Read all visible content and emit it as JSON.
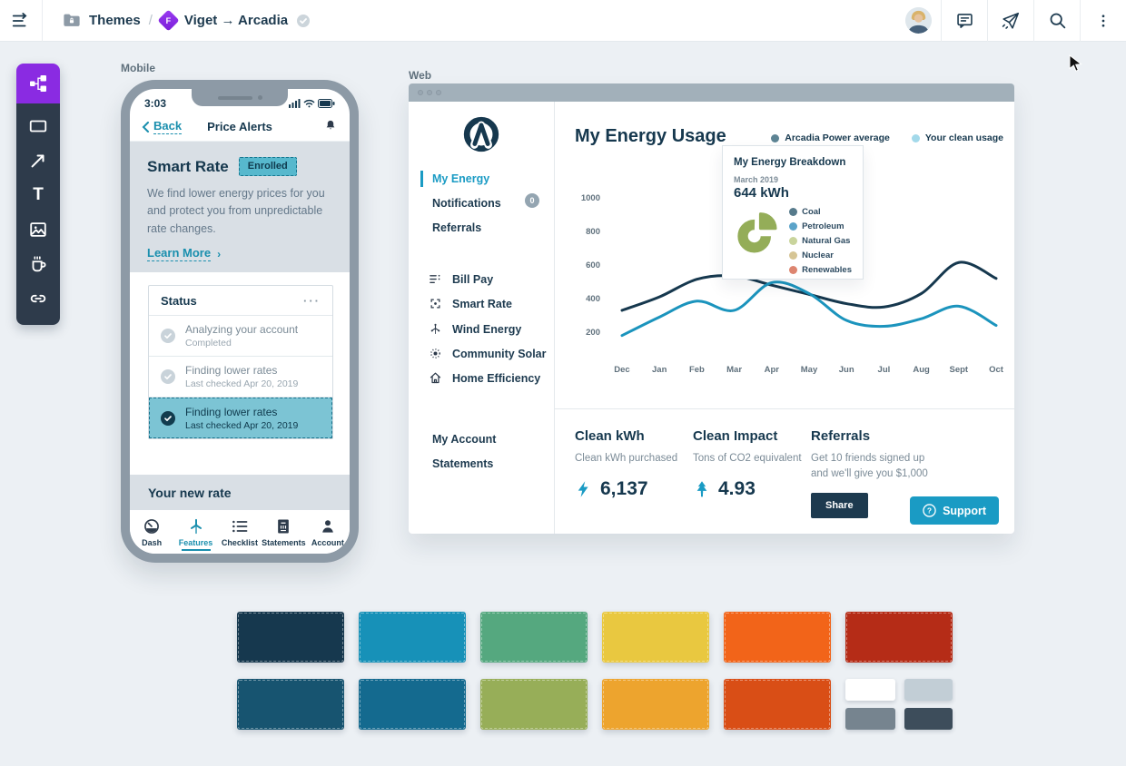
{
  "topbar": {
    "folder_label": "Themes",
    "separator": "/",
    "project_badge_letter": "F",
    "project_name": "Viget → Arcadia"
  },
  "artboards": {
    "mobile_label": "Mobile",
    "web_label": "Web"
  },
  "mobile": {
    "status_time": "3:03",
    "nav": {
      "back_label": "Back",
      "title": "Price Alerts"
    },
    "smart_rate": {
      "title": "Smart Rate",
      "badge_label": "Enrolled",
      "body": "We find lower energy prices for you and protect you from unpredictable rate changes.",
      "link_label": "Learn More",
      "link_chevron": "›"
    },
    "status_card": {
      "title": "Status",
      "menu_glyph": "···",
      "items": [
        {
          "title": "Analyzing your account",
          "subtitle": "Completed",
          "selected": false
        },
        {
          "title": "Finding lower rates",
          "subtitle": "Last checked Apr 20, 2019",
          "selected": false
        },
        {
          "title": "Finding lower rates",
          "subtitle": "Last checked Apr 20, 2019",
          "selected": true
        }
      ]
    },
    "new_rate_label": "Your new rate",
    "tabs": [
      {
        "label": "Dash",
        "active": false
      },
      {
        "label": "Features",
        "active": true
      },
      {
        "label": "Checklist",
        "active": false
      },
      {
        "label": "Statements",
        "active": false
      },
      {
        "label": "Account",
        "active": false
      }
    ]
  },
  "web": {
    "sidebar": {
      "primary": [
        {
          "label": "My Energy",
          "active": true
        },
        {
          "label": "Notifications",
          "badge": "0"
        },
        {
          "label": "Referrals"
        }
      ],
      "secondary": [
        {
          "label": "Bill Pay"
        },
        {
          "label": "Smart Rate"
        },
        {
          "label": "Wind Energy"
        },
        {
          "label": "Community Solar"
        },
        {
          "label": "Home Efficiency"
        }
      ],
      "tertiary": [
        {
          "label": "My Account"
        },
        {
          "label": "Statements"
        }
      ]
    },
    "main": {
      "title": "My Energy Usage",
      "legend": [
        {
          "label": "Arcadia Power average",
          "dot_color": "#5d8494"
        },
        {
          "label": "Your clean usage",
          "dot_color": "#a3d9ea"
        }
      ]
    },
    "tooltip": {
      "title": "My Energy Breakdown",
      "period": "March 2019",
      "value": "644 kWh",
      "legend": [
        {
          "label": "Coal",
          "color": "#567a8b"
        },
        {
          "label": "Petroleum",
          "color": "#5ba3c9"
        },
        {
          "label": "Natural Gas",
          "color": "#c9d49c"
        },
        {
          "label": "Nuclear",
          "color": "#d6c595"
        },
        {
          "label": "Renewables",
          "color": "#dd8570"
        }
      ],
      "pie_color": "#94ad58"
    },
    "stats": {
      "kwh": {
        "title": "Clean kWh",
        "subtitle": "Clean kWh purchased",
        "value": "6,137"
      },
      "impact": {
        "title": "Clean Impact",
        "subtitle": "Tons of CO2 equivalent",
        "value": "4.93"
      },
      "referrals": {
        "title": "Referrals",
        "subtitle_line1": "Get 10 friends signed up",
        "subtitle_line2": "and we'll give you $1,000",
        "button_label": "Share"
      }
    },
    "support_label": "Support"
  },
  "chart_data": {
    "usage": {
      "type": "line",
      "title": "My Energy Usage",
      "x": [
        "Dec",
        "Jan",
        "Feb",
        "Mar",
        "Apr",
        "May",
        "Jun",
        "Jul",
        "Aug",
        "Sept",
        "Oct"
      ],
      "yticks": [
        200,
        400,
        600,
        800,
        1000
      ],
      "ylim": [
        100,
        1060
      ],
      "grid": false,
      "legend_position": "top-right",
      "series": [
        {
          "name": "Arcadia Power average",
          "color": "#16384e",
          "values": [
            330,
            410,
            515,
            535,
            480,
            425,
            370,
            350,
            430,
            615,
            520
          ]
        },
        {
          "name": "Your clean usage",
          "color": "#1b94bd",
          "values": [
            180,
            290,
            385,
            330,
            495,
            430,
            270,
            235,
            280,
            355,
            240
          ]
        }
      ]
    },
    "breakdown": {
      "type": "pie",
      "title": "My Energy Breakdown",
      "period": "March 2019",
      "total_label": "644 kWh",
      "labels": [
        "Coal",
        "Petroleum",
        "Natural Gas",
        "Nuclear",
        "Renewables"
      ],
      "colors": [
        "#567a8b",
        "#5ba3c9",
        "#c9d49c",
        "#d6c595",
        "#dd8570"
      ]
    }
  },
  "palette": {
    "row1": [
      "#16384e",
      "#1791b8",
      "#55a87f",
      "#e9c840",
      "#f26419",
      "#b52c17"
    ],
    "row2": [
      "#175470",
      "#146a8f",
      "#97ae58",
      "#eda42e",
      "#d94e16"
    ],
    "row2_mini": [
      "#ffffff",
      "#c2ced6",
      "#76848f",
      "#3d4d5b"
    ]
  },
  "colors": {
    "accent_teal": "#1a9bc4",
    "brand_navy": "#16384e",
    "toolbar_purple": "#8a2be2",
    "selected_fill": "#7cc4d4"
  }
}
